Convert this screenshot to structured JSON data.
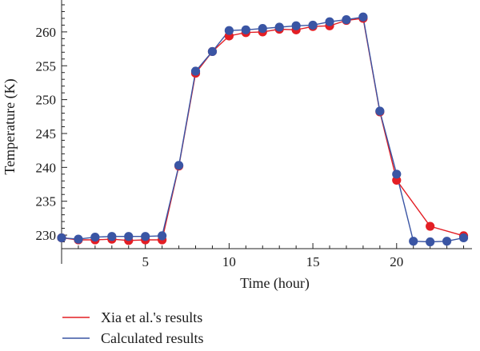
{
  "chart_data": {
    "type": "line",
    "xlabel": "Time (hour)",
    "ylabel": "Temperature (K)",
    "xlim": [
      0,
      24.5
    ],
    "ylim": [
      228,
      264
    ],
    "x_ticks": [
      5,
      10,
      15,
      20
    ],
    "y_ticks": [
      230,
      235,
      240,
      245,
      250,
      255,
      260
    ],
    "grid": false,
    "legend_position": "bottom-left",
    "series": [
      {
        "name": "Xia et al.'s results",
        "color": "#e31e24",
        "points": [
          [
            0,
            229.6
          ],
          [
            1,
            229.3
          ],
          [
            2,
            229.3
          ],
          [
            3,
            229.4
          ],
          [
            4,
            229.2
          ],
          [
            5,
            229.3
          ],
          [
            6,
            229.3
          ],
          [
            7,
            240.2
          ],
          [
            8,
            253.9
          ],
          [
            9,
            257.1
          ],
          [
            10,
            259.4
          ],
          [
            11,
            259.9
          ],
          [
            12,
            260.0
          ],
          [
            13,
            260.4
          ],
          [
            14,
            260.3
          ],
          [
            15,
            260.8
          ],
          [
            16,
            260.9
          ],
          [
            17,
            261.7
          ],
          [
            18,
            262.0
          ],
          [
            19,
            248.2
          ],
          [
            20,
            238.1
          ],
          [
            22,
            231.3
          ],
          [
            24,
            229.9
          ]
        ]
      },
      {
        "name": "Calculated results",
        "color": "#3a55a4",
        "points": [
          [
            0,
            229.6
          ],
          [
            1,
            229.4
          ],
          [
            2,
            229.7
          ],
          [
            3,
            229.8
          ],
          [
            4,
            229.8
          ],
          [
            5,
            229.8
          ],
          [
            6,
            229.9
          ],
          [
            7,
            240.3
          ],
          [
            8,
            254.2
          ],
          [
            9,
            257.1
          ],
          [
            10,
            260.2
          ],
          [
            11,
            260.3
          ],
          [
            12,
            260.5
          ],
          [
            13,
            260.7
          ],
          [
            14,
            260.9
          ],
          [
            15,
            261.0
          ],
          [
            16,
            261.5
          ],
          [
            17,
            261.8
          ],
          [
            18,
            262.2
          ],
          [
            19,
            248.3
          ],
          [
            20,
            239.0
          ],
          [
            21,
            229.1
          ],
          [
            22,
            229.0
          ],
          [
            23,
            229.1
          ],
          [
            24,
            229.6
          ]
        ]
      }
    ]
  }
}
